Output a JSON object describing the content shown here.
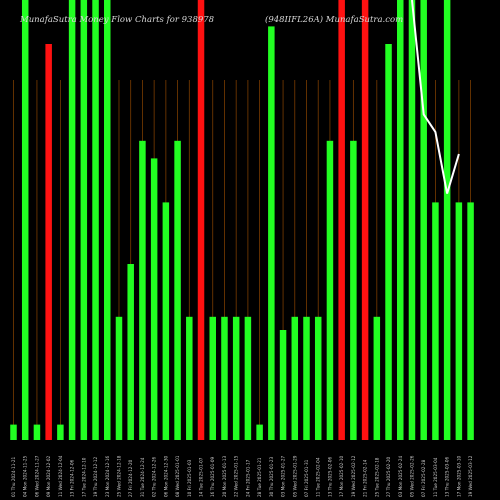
{
  "header": {
    "left_text": "MunafaSutra Money Flow Charts for 938978",
    "right_text": "(948IIFL26A) MunafaSutra.com"
  },
  "colors": {
    "background": "#000000",
    "up": "#22ff22",
    "down": "#ff1111",
    "grid": "#7a3c00",
    "line": "#ffffff",
    "text": "#d8d8d8"
  },
  "chart_data": {
    "type": "bar",
    "title": "MunafaSutra Money Flow Charts for 938978",
    "subtitle": "(948IIFL26A) MunafaSutra.com",
    "ylim": [
      0,
      100
    ],
    "grid": "vertical",
    "categories": [
      "01 Thu 2024-11-21",
      "04 Mon 2024-11-25",
      "06 Wed 2024-11-27",
      "09 Mon 2024-12-02",
      "11 Wed 2024-12-04",
      "13 Fri 2024-12-06",
      "17 Tue 2024-12-10",
      "19 Thu 2024-12-12",
      "23 Mon 2024-12-16",
      "25 Wed 2024-12-18",
      "27 Fri 2024-12-20",
      "31 Tue 2024-12-24",
      "02 Thu 2024-12-26",
      "06 Mon 2024-12-30",
      "08 Wed 2025-01-01",
      "10 Fri 2025-01-03",
      "14 Tue 2025-01-07",
      "16 Thu 2025-01-09",
      "20 Mon 2025-01-13",
      "22 Wed 2025-01-15",
      "24 Fri 2025-01-17",
      "28 Tue 2025-01-21",
      "30 Thu 2025-01-23",
      "03 Mon 2025-01-27",
      "05 Wed 2025-01-29",
      "07 Fri 2025-01-31",
      "11 Tue 2025-02-04",
      "13 Thu 2025-02-06",
      "17 Mon 2025-02-10",
      "19 Wed 2025-02-12",
      "21 Fri 2025-02-14",
      "25 Tue 2025-02-18",
      "27 Thu 2025-02-20",
      "03 Mon 2025-02-24",
      "05 Wed 2025-02-26",
      "07 Fri 2025-02-28",
      "11 Tue 2025-03-04",
      "13 Thu 2025-03-06",
      "17 Mon 2025-03-10",
      "19 Wed 2025-03-12"
    ],
    "series": [
      {
        "values": [
          3.5,
          100,
          3.5,
          90,
          3.5,
          100,
          100,
          100,
          100,
          28,
          40,
          68,
          64,
          54,
          68,
          28,
          100,
          28,
          28,
          28,
          28,
          3.5,
          94,
          25,
          28,
          28,
          28,
          68,
          100,
          68,
          100,
          28,
          90,
          100,
          100,
          100,
          54,
          100,
          54,
          54
        ],
        "colors": [
          "up",
          "up",
          "up",
          "down",
          "up",
          "up",
          "up",
          "up",
          "up",
          "up",
          "up",
          "up",
          "up",
          "up",
          "up",
          "up",
          "down",
          "up",
          "up",
          "up",
          "up",
          "up",
          "up",
          "up",
          "up",
          "up",
          "up",
          "up",
          "down",
          "up",
          "down",
          "up",
          "up",
          "up",
          "up",
          "up",
          "up",
          "up",
          "up",
          "up"
        ]
      },
      {
        "values": [
          null,
          null,
          null,
          null,
          null,
          null,
          null,
          null,
          null,
          null,
          null,
          null,
          null,
          null,
          null,
          null,
          null,
          null,
          null,
          null,
          null,
          null,
          null,
          null,
          null,
          null,
          null,
          null,
          null,
          null,
          null,
          null,
          null,
          null,
          100,
          74,
          70,
          56,
          65,
          null
        ]
      }
    ]
  }
}
